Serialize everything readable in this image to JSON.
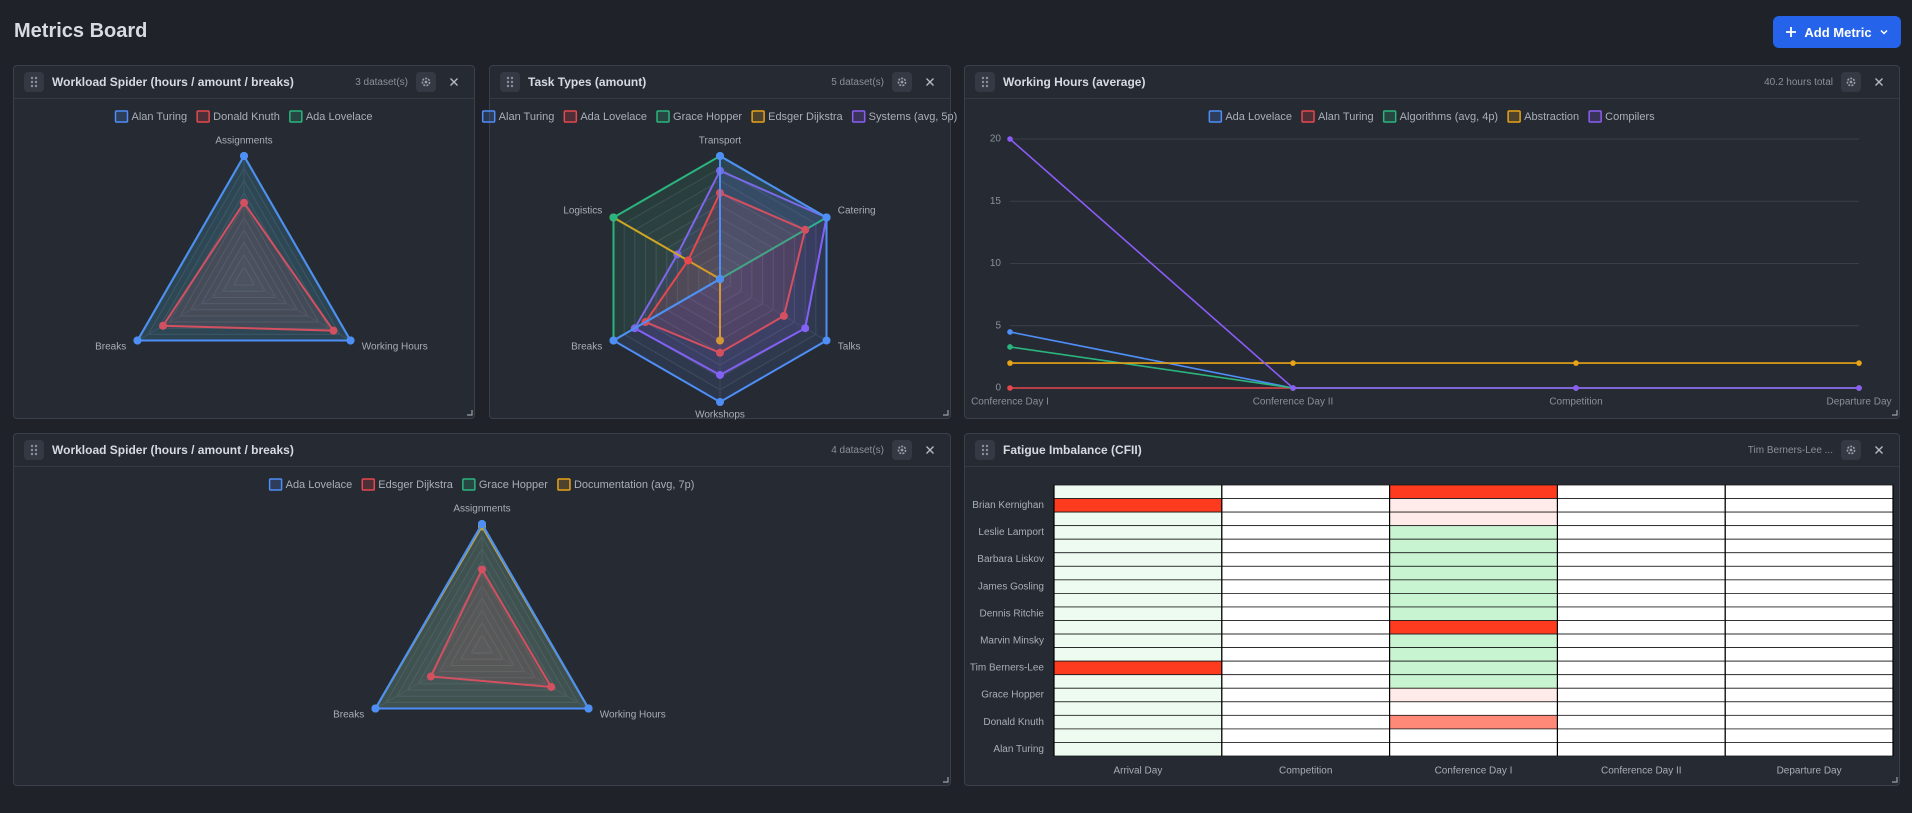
{
  "header": {
    "title": "Metrics Board",
    "button": "Add Metric"
  },
  "chart_data": [
    {
      "type": "radar",
      "title": "Workload Spider (hours / amount / breaks)",
      "summary": "3 dataset(s)",
      "axes": [
        "Assignments",
        "Working Hours",
        "Breaks"
      ],
      "rlim": [
        0,
        10
      ],
      "series": [
        {
          "name": "Alan Turing",
          "color": "#4f8ef7",
          "values": [
            10,
            10,
            10
          ]
        },
        {
          "name": "Donald Knuth",
          "color": "#e5484d",
          "values": [
            6.2,
            8.4,
            7.6
          ]
        },
        {
          "name": "Ada Lovelace",
          "color": "#2bb57e",
          "values": [
            10,
            10,
            10
          ]
        }
      ]
    },
    {
      "type": "radar",
      "title": "Task Types (amount)",
      "summary": "5 dataset(s)",
      "axes": [
        "Transport",
        "Catering",
        "Talks",
        "Workshops",
        "Breaks",
        "Logistics"
      ],
      "rlim": [
        0,
        10
      ],
      "series": [
        {
          "name": "Alan Turing",
          "color": "#4f8ef7",
          "values": [
            10,
            10,
            10,
            10,
            10,
            0
          ]
        },
        {
          "name": "Ada Lovelace",
          "color": "#e5484d",
          "values": [
            7,
            8,
            6,
            6,
            7,
            3
          ]
        },
        {
          "name": "Grace Hopper",
          "color": "#2bb57e",
          "values": [
            10,
            10,
            0,
            0,
            10,
            10
          ]
        },
        {
          "name": "Edsger Dijkstra",
          "color": "#e8a317",
          "values": [
            0,
            0,
            0,
            5,
            0,
            10
          ]
        },
        {
          "name": "Systems (avg, 5p)",
          "color": "#8b5cf6",
          "values": [
            8.8,
            10,
            8,
            7.8,
            8,
            4
          ]
        }
      ]
    },
    {
      "type": "line",
      "title": "Working Hours (average)",
      "summary": "40.2 hours total",
      "categories": [
        "Conference Day I",
        "Conference Day II",
        "Competition",
        "Departure Day"
      ],
      "ylim": [
        0,
        20
      ],
      "yticks": [
        0,
        5,
        10,
        15,
        20
      ],
      "grid": true,
      "series": [
        {
          "name": "Ada Lovelace",
          "color": "#4f8ef7",
          "values": [
            4.5,
            0,
            0,
            0
          ]
        },
        {
          "name": "Alan Turing",
          "color": "#e5484d",
          "values": [
            0,
            0,
            0,
            0
          ]
        },
        {
          "name": "Algorithms (avg, 4p)",
          "color": "#2bb57e",
          "values": [
            3.3,
            0,
            0,
            0
          ]
        },
        {
          "name": "Abstraction",
          "color": "#e8a317",
          "values": [
            2,
            2,
            2,
            2
          ]
        },
        {
          "name": "Compilers",
          "color": "#8b5cf6",
          "values": [
            20,
            0,
            0,
            0
          ]
        }
      ]
    },
    {
      "type": "radar",
      "title": "Workload Spider (hours / amount / breaks)",
      "summary": "4 dataset(s)",
      "axes": [
        "Assignments",
        "Working Hours",
        "Breaks"
      ],
      "rlim": [
        0,
        10
      ],
      "series": [
        {
          "name": "Ada Lovelace",
          "color": "#4f8ef7",
          "values": [
            10,
            10,
            10
          ]
        },
        {
          "name": "Edsger Dijkstra",
          "color": "#e5484d",
          "values": [
            6.3,
            6.5,
            4.8
          ]
        },
        {
          "name": "Grace Hopper",
          "color": "#2bb57e",
          "values": [
            10,
            10,
            10
          ]
        },
        {
          "name": "Documentation (avg, 7p)",
          "color": "#e8a317",
          "values": [
            9.8,
            10,
            10
          ]
        }
      ]
    },
    {
      "type": "heatmap",
      "title": "Fatigue Imbalance (CFII)",
      "summary": "Tim Berners-Lee ...",
      "categories": [
        "Arrival Day",
        "Competition",
        "Conference Day I",
        "Conference Day II",
        "Departure Day"
      ],
      "rows": [
        null,
        "Brian Kernighan",
        null,
        "Leslie Lamport",
        null,
        "Barbara Liskov",
        null,
        "James Gosling",
        null,
        "Dennis Ritchie",
        null,
        "Marvin Minsky",
        null,
        "Tim Berners-Lee",
        null,
        "Grace Hopper",
        null,
        "Donald Knuth",
        null,
        "Alan Turing"
      ],
      "values": [
        [
          -1,
          0,
          10,
          0,
          0
        ],
        [
          10,
          0,
          1,
          0,
          0
        ],
        [
          -1,
          0,
          1,
          0,
          0
        ],
        [
          -1,
          0,
          -3,
          0,
          0
        ],
        [
          -1,
          0,
          -3,
          0,
          0
        ],
        [
          -1,
          0,
          -3,
          0,
          0
        ],
        [
          -1,
          0,
          -3,
          0,
          0
        ],
        [
          -1,
          0,
          -3,
          0,
          0
        ],
        [
          -1,
          0,
          -3,
          0,
          0
        ],
        [
          -1,
          0,
          -3,
          0,
          0
        ],
        [
          -1,
          0,
          10,
          0,
          0
        ],
        [
          -1,
          0,
          -3,
          0,
          0
        ],
        [
          -1,
          0,
          -3,
          0,
          0
        ],
        [
          10,
          0,
          -3,
          0,
          0
        ],
        [
          -1,
          0,
          -3,
          0,
          0
        ],
        [
          -1,
          0,
          1,
          0,
          0
        ],
        [
          -1,
          0,
          0,
          0,
          0
        ],
        [
          -1,
          0,
          6,
          0,
          0
        ],
        [
          -1,
          0,
          0,
          0,
          0
        ],
        [
          -1,
          0,
          0,
          0,
          0
        ]
      ],
      "zlim": [
        -10,
        10
      ],
      "colors": {
        "low": "#4cd964",
        "mid": "#ffffff",
        "high": "#ff3b1f"
      }
    }
  ]
}
